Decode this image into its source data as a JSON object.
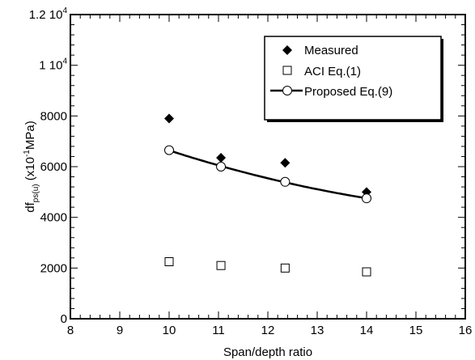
{
  "chart_data": {
    "type": "scatter",
    "xlabel": "Span/depth ratio",
    "ylabel": {
      "prefix": "df",
      "subscript": "ps(u)",
      "units_open": " (x10",
      "units_exp": "-1",
      "units_close": "MPa)"
    },
    "xlim": [
      8,
      16
    ],
    "ylim": [
      0,
      12000
    ],
    "x_ticks": [
      8,
      9,
      10,
      11,
      12,
      13,
      14,
      15,
      16
    ],
    "y_ticks": [
      {
        "value": 0,
        "label": "0"
      },
      {
        "value": 2000,
        "label": "2000"
      },
      {
        "value": 4000,
        "label": "4000"
      },
      {
        "value": 6000,
        "label": "6000"
      },
      {
        "value": 8000,
        "label": "8000"
      },
      {
        "value": 10000,
        "label": "1 10",
        "exp": "4"
      },
      {
        "value": 12000,
        "label": "1.2 10",
        "exp": "4"
      }
    ],
    "legend_position": "top-right",
    "series": [
      {
        "name": "Measured",
        "marker": "filled-diamond",
        "points": [
          [
            10,
            7900
          ],
          [
            11.05,
            6350
          ],
          [
            12.35,
            6150
          ],
          [
            14,
            5000
          ]
        ]
      },
      {
        "name": "ACI Eq.(1)",
        "marker": "open-square",
        "points": [
          [
            10,
            2250
          ],
          [
            11.05,
            2100
          ],
          [
            12.35,
            2000
          ],
          [
            14,
            1850
          ]
        ]
      },
      {
        "name": "Proposed Eq.(9)",
        "marker": "open-circle",
        "line": true,
        "points": [
          [
            10,
            6650
          ],
          [
            11.05,
            6000
          ],
          [
            12.35,
            5400
          ],
          [
            14,
            4750
          ]
        ]
      }
    ]
  }
}
